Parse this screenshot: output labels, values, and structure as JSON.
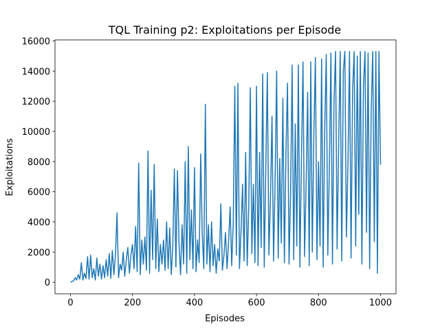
{
  "chart_data": {
    "type": "line",
    "title": "TQL Training p2: Exploitations per Episode",
    "x_label": "Episodes",
    "y_label": "Exploitations",
    "color": "#1f77b4",
    "x": [
      0,
      5,
      10,
      15,
      20,
      25,
      30,
      35,
      40,
      45,
      50,
      55,
      60,
      65,
      70,
      75,
      80,
      85,
      90,
      95,
      100,
      105,
      110,
      115,
      120,
      125,
      130,
      135,
      140,
      145,
      150,
      155,
      160,
      165,
      170,
      175,
      180,
      185,
      190,
      195,
      200,
      205,
      210,
      215,
      220,
      225,
      230,
      235,
      240,
      245,
      250,
      255,
      260,
      265,
      270,
      275,
      280,
      285,
      290,
      295,
      300,
      305,
      310,
      315,
      320,
      325,
      330,
      335,
      340,
      345,
      350,
      355,
      360,
      365,
      370,
      375,
      380,
      385,
      390,
      395,
      400,
      405,
      410,
      415,
      420,
      425,
      430,
      435,
      440,
      445,
      450,
      455,
      460,
      465,
      470,
      475,
      480,
      485,
      490,
      495,
      500,
      505,
      510,
      515,
      520,
      525,
      530,
      535,
      540,
      545,
      550,
      555,
      560,
      565,
      570,
      575,
      580,
      585,
      590,
      595,
      600,
      605,
      610,
      615,
      620,
      625,
      630,
      635,
      640,
      645,
      650,
      655,
      660,
      665,
      670,
      675,
      680,
      685,
      690,
      695,
      700,
      705,
      710,
      715,
      720,
      725,
      730,
      735,
      740,
      745,
      750,
      755,
      760,
      765,
      770,
      775,
      780,
      785,
      790,
      795,
      800,
      805,
      810,
      815,
      820,
      825,
      830,
      835,
      840,
      845,
      850,
      855,
      860,
      865,
      870,
      875,
      880,
      885,
      890,
      895,
      900,
      905,
      910,
      915,
      920,
      925,
      930,
      935,
      940,
      945,
      950,
      955,
      960,
      965,
      970,
      975,
      980,
      985,
      990,
      995,
      1000
    ],
    "values": [
      0,
      50,
      100,
      300,
      150,
      500,
      200,
      1300,
      150,
      600,
      250,
      1700,
      200,
      1800,
      300,
      900,
      150,
      1600,
      400,
      1200,
      200,
      1100,
      300,
      1500,
      400,
      1900,
      250,
      2100,
      500,
      1800,
      4600,
      300,
      1200,
      800,
      2000,
      400,
      1500,
      2300,
      600,
      1800,
      2500,
      900,
      3700,
      700,
      7900,
      500,
      2800,
      1200,
      3000,
      800,
      8700,
      600,
      6100,
      1500,
      7800,
      900,
      4200,
      700,
      2500,
      1200,
      2800,
      800,
      4000,
      900,
      3600,
      500,
      2400,
      7500,
      1000,
      7400,
      2600,
      500,
      3800,
      1200,
      8000,
      600,
      9000,
      1500,
      4800,
      900,
      7600,
      700,
      2800,
      1300,
      8500,
      3200,
      900,
      11800,
      1200,
      3800,
      700,
      4000,
      1100,
      2500,
      600,
      2200,
      1400,
      5200,
      800,
      1800,
      3300,
      900,
      2700,
      5000,
      1100,
      3900,
      13000,
      1800,
      13200,
      900,
      3300,
      6500,
      1400,
      8600,
      1100,
      5000,
      12900,
      1900,
      6500,
      1300,
      13000,
      1100,
      8600,
      2300,
      13800,
      1000,
      7600,
      13900,
      1800,
      5500,
      11000,
      1400,
      6700,
      14000,
      1600,
      8200,
      2600,
      12200,
      1300,
      8600,
      13200,
      1200,
      5900,
      14400,
      1500,
      10500,
      2400,
      14400,
      1000,
      8200,
      14600,
      1700,
      6400,
      12600,
      1100,
      14600,
      2000,
      9800,
      14900,
      1500,
      8000,
      2400,
      14800,
      1000,
      10200,
      15100,
      1800,
      7600,
      15200,
      1200,
      12000,
      15300,
      2200,
      9100,
      15300,
      1400,
      14000,
      15300,
      3000,
      7800,
      15300,
      1600,
      12700,
      15300,
      2400,
      15000,
      4500,
      15300,
      1200,
      13000,
      15300,
      3300,
      15200,
      900,
      11400,
      15300,
      2700,
      15300,
      600,
      15300,
      7800
    ],
    "xlim": [
      -50,
      1050
    ],
    "ylim": [
      -765,
      16065
    ],
    "xticks": [
      0,
      200,
      400,
      600,
      800,
      1000
    ],
    "yticks": [
      0,
      2000,
      4000,
      6000,
      8000,
      10000,
      12000,
      14000,
      16000
    ]
  }
}
